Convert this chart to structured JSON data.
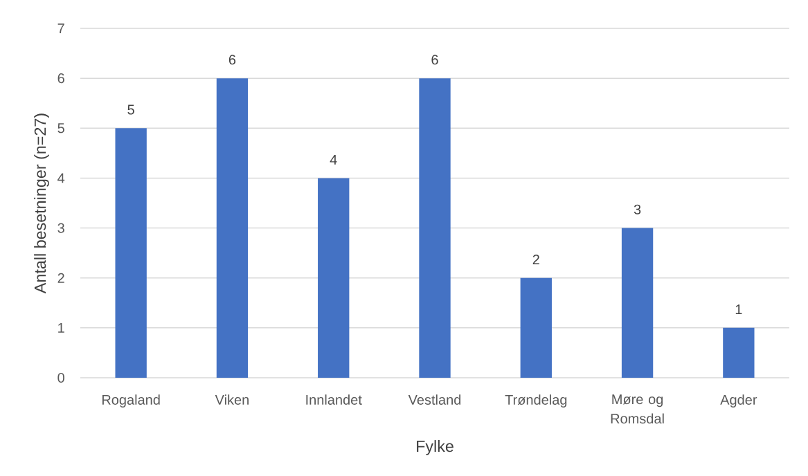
{
  "chart_data": {
    "type": "bar",
    "xlabel": "Fylke",
    "ylabel": "Antall besetninger (n=27)",
    "categories": [
      "Rogaland",
      "Viken",
      "Innlandet",
      "Vestland",
      "Trøndelag",
      "Møre og Romsdal",
      "Agder"
    ],
    "values": [
      5,
      6,
      4,
      6,
      2,
      3,
      1
    ],
    "color": "#4472c4",
    "ylim": [
      0,
      7
    ],
    "yticks": [
      0,
      1,
      2,
      3,
      4,
      5,
      6,
      7
    ],
    "grid": "y",
    "data_labels": true
  }
}
